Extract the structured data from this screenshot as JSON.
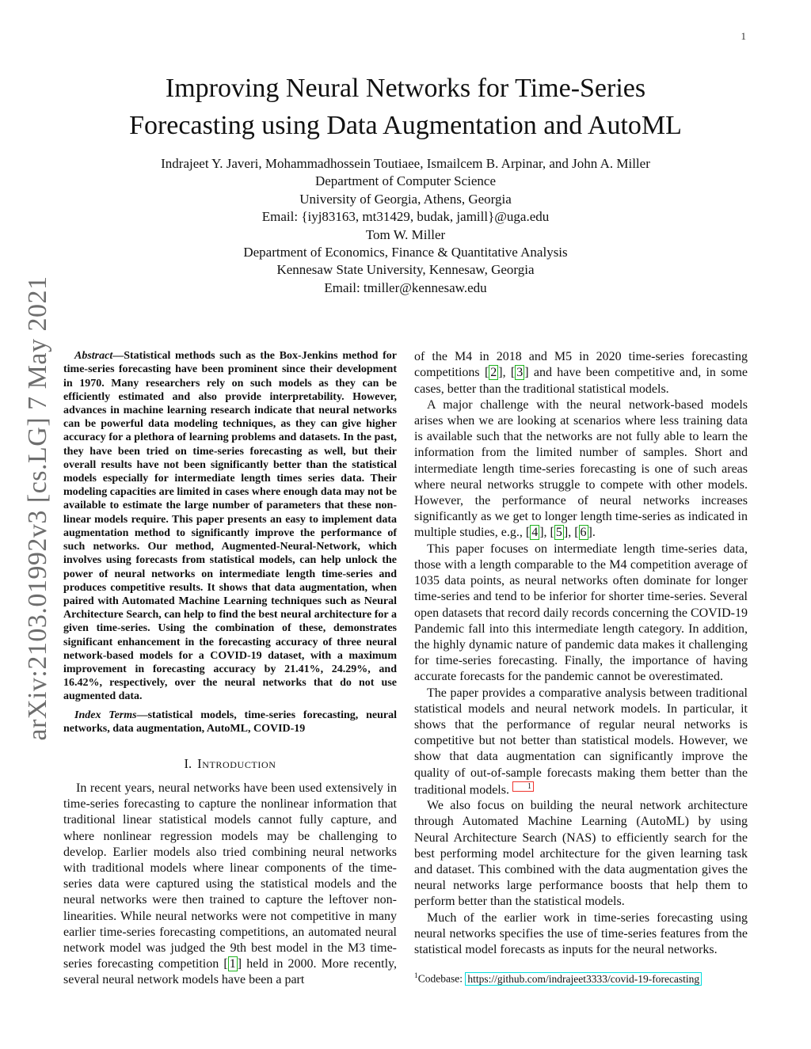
{
  "colors": {
    "citation_green": "#1fb41f",
    "footnote_red": "#ef342d",
    "url_cyan": "#00dcdc",
    "arxiv_gray": "#6d6d6d"
  },
  "page": {
    "number": "1"
  },
  "watermark": {
    "text": "arXiv:2103.01992v3  [cs.LG]  7 May 2021"
  },
  "header": {
    "title_line1": "Improving Neural Networks for Time-Series",
    "title_line2": "Forecasting using Data Augmentation and AutoML",
    "author_lines": [
      "Indrajeet Y. Javeri, Mohammadhossein Toutiaee, Ismailcem B. Arpinar, and John A. Miller",
      "Department of Computer Science",
      "University of Georgia, Athens, Georgia",
      "Email: {iyj83163, mt31429, budak, jamill}@uga.edu",
      "Tom W. Miller",
      "Department of Economics, Finance & Quantitative Analysis",
      "Kennesaw State University, Kennesaw, Georgia",
      "Email: tmiller@kennesaw.edu"
    ]
  },
  "abstract": {
    "lead": "Abstract",
    "text": "—Statistical methods such as the Box-Jenkins method for time-series forecasting have been prominent since their development in 1970. Many researchers rely on such models as they can be efficiently estimated and also provide interpretability. However, advances in machine learning research indicate that neural networks can be powerful data modeling techniques, as they can give higher accuracy for a plethora of learning problems and datasets. In the past, they have been tried on time-series forecasting as well, but their overall results have not been significantly better than the statistical models especially for intermediate length times series data. Their modeling capacities are limited in cases where enough data may not be available to estimate the large number of parameters that these non-linear models require. This paper presents an easy to implement data augmentation method to significantly improve the performance of such networks. Our method, Augmented-Neural-Network, which involves using forecasts from statistical models, can help unlock the power of neural networks on intermediate length time-series and produces competitive results. It shows that data augmentation, when paired with Automated Machine Learning techniques such as Neural Architecture Search, can help to find the best neural architecture for a given time-series. Using the combination of these, demonstrates significant enhancement in the forecasting accuracy of three neural network-based models for a COVID-19 dataset, with a maximum improvement in forecasting accuracy by 21.41%, 24.29%, and 16.42%, respectively, over the neural networks that do not use augmented data."
  },
  "index_terms": {
    "lead": "Index Terms",
    "text": "—statistical models, time-series forecasting, neural networks, data augmentation, AutoML, COVID-19"
  },
  "intro": {
    "heading_number": "I.",
    "heading_title": "Introduction",
    "p1": [
      {
        "t": "In recent years, neural networks have been used extensively in time-series forecasting to capture the nonlinear information that traditional linear statistical models cannot fully capture, and where nonlinear regression models may be challenging to develop. Earlier models also tried combining neural networks with traditional models where linear components of the time-series data were captured using the statistical models and the neural networks were then trained to capture the leftover non-linearities. While neural networks were not competitive in many earlier time-series forecasting competitions, an automated neural network model was judged the 9th best model in the M3 time-series forecasting competition "
      },
      {
        "c": "1"
      },
      {
        "t": " held in 2000. More recently, several neural network models have been a part"
      }
    ]
  },
  "right_col": {
    "p1": [
      {
        "t": "of the M4 in 2018 and M5 in 2020 time-series forecasting competitions "
      },
      {
        "c": "2"
      },
      {
        "t": ", "
      },
      {
        "c": "3"
      },
      {
        "t": " and have been competitive and, in some cases, better than the traditional statistical models."
      }
    ],
    "p2": [
      {
        "t": "A major challenge with the neural network-based models arises when we are looking at scenarios where less training data is available such that the networks are not fully able to learn the information from the limited number of samples. Short and intermediate length time-series forecasting is one of such areas where neural networks struggle to compete with other models. However, the performance of neural networks increases significantly as we get to longer length time-series as indicated in multiple studies, e.g., "
      },
      {
        "c": "4"
      },
      {
        "t": ", "
      },
      {
        "c": "5"
      },
      {
        "t": ", "
      },
      {
        "c": "6"
      },
      {
        "t": "."
      }
    ],
    "p3": [
      {
        "t": "This paper focuses on intermediate length time-series data, those with a length comparable to the M4 competition average of 1035 data points, as neural networks often dominate for longer time-series and tend to be inferior for shorter time-series. Several open datasets that record daily records concerning the COVID-19 Pandemic fall into this intermediate length category. In addition, the highly dynamic nature of pandemic data makes it challenging for time-series forecasting. Finally, the importance of having accurate forecasts for the pandemic cannot be overestimated."
      }
    ],
    "p4": [
      {
        "t": "The paper provides a comparative analysis between traditional statistical models and neural network models. In particular, it shows that the performance of regular neural networks is competitive but not better than statistical models. However, we show that data augmentation can significantly improve the quality of out-of-sample forecasts making them better than the traditional models. "
      },
      {
        "f": "1"
      }
    ],
    "p5": [
      {
        "t": "We also focus on building the neural network architecture through Automated Machine Learning (AutoML) by using Neural Architecture Search (NAS) to efficiently search for the best performing model architecture for the given learning task and dataset. This combined with the data augmentation gives the neural networks large performance boosts that help them to perform better than the statistical models."
      }
    ],
    "p6": [
      {
        "t": "Much of the earlier work in time-series forecasting using neural networks specifies the use of time-series features from the statistical model forecasts as inputs for the neural networks."
      }
    ]
  },
  "footnote": {
    "marker": "1",
    "label": "Codebase: ",
    "url": "https://github.com/indrajeet3333/covid-19-forecasting"
  }
}
